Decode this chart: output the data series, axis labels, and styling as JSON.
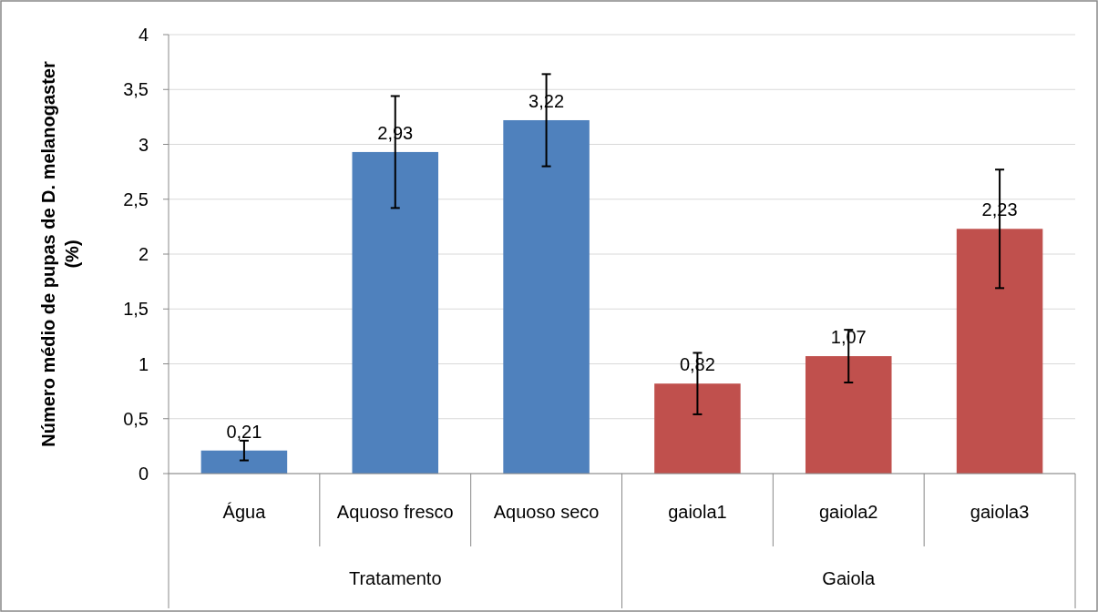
{
  "chart_data": {
    "type": "bar",
    "ylabel": "Número médio de pupas de D. melanogaster (%)",
    "categories": [
      "Água",
      "Aquoso fresco",
      "Aquoso seco",
      "gaiola1",
      "gaiola2",
      "gaiola3"
    ],
    "series": [
      {
        "color": "#4f81bd",
        "values": [
          0.21,
          2.93,
          3.22,
          null,
          null,
          null
        ],
        "errors": [
          0.09,
          0.51,
          0.42,
          null,
          null,
          null
        ],
        "value_labels": [
          "0,21",
          "2,93",
          "3,22",
          null,
          null,
          null
        ]
      },
      {
        "color": "#c0504d",
        "values": [
          null,
          null,
          null,
          0.82,
          1.07,
          2.23
        ],
        "errors": [
          null,
          null,
          null,
          0.28,
          0.24,
          0.54
        ],
        "value_labels": [
          null,
          null,
          null,
          "0,82",
          "1,07",
          "2,23"
        ]
      }
    ],
    "ylim": [
      0,
      4
    ],
    "yticks": [
      0,
      {
        "value": 0.5,
        "label": "0,5"
      },
      1,
      {
        "value": 1.5,
        "label": "1,5"
      },
      2,
      {
        "value": 2.5,
        "label": "2,5"
      },
      3,
      {
        "value": 3.5,
        "label": "3,5"
      },
      4
    ],
    "grid": "y",
    "annotations": [
      "Tratamento",
      "Gaiola"
    ]
  }
}
